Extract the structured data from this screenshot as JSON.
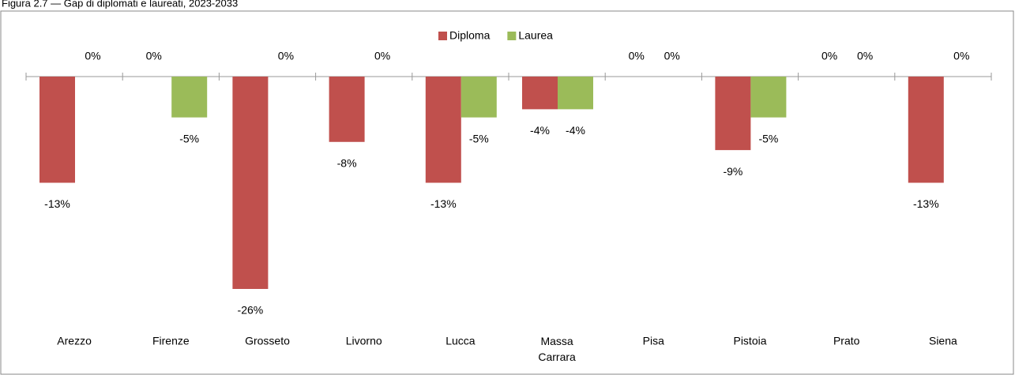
{
  "chart_data": {
    "type": "bar",
    "title": "Figura 2.7 — Gap di diplomati e laureati, 2023-2033",
    "categories": [
      "Arezzo",
      "Firenze",
      "Grosseto",
      "Livorno",
      "Lucca",
      "Massa Carrara",
      "Pisa",
      "Pistoia",
      "Prato",
      "Siena"
    ],
    "series": [
      {
        "name": "Diploma",
        "color": "#c0504d",
        "values": [
          -13,
          0,
          -26,
          -8,
          -13,
          -4,
          0,
          -9,
          0,
          -13
        ],
        "value_labels": [
          "-13%",
          "0%",
          "-26%",
          "-8%",
          "-13%",
          "-4%",
          "0%",
          "-9%",
          "0%",
          "-13%"
        ]
      },
      {
        "name": "Laurea",
        "color": "#9bbb59",
        "values": [
          0,
          -5,
          0,
          0,
          -5,
          -4,
          0,
          -5,
          0,
          0
        ],
        "value_labels": [
          "0%",
          "-5%",
          "0%",
          "0%",
          "-5%",
          "-4%",
          "0%",
          "-5%",
          "0%",
          "0%"
        ]
      }
    ],
    "ylim": [
      -26,
      0
    ],
    "legend": "top"
  }
}
